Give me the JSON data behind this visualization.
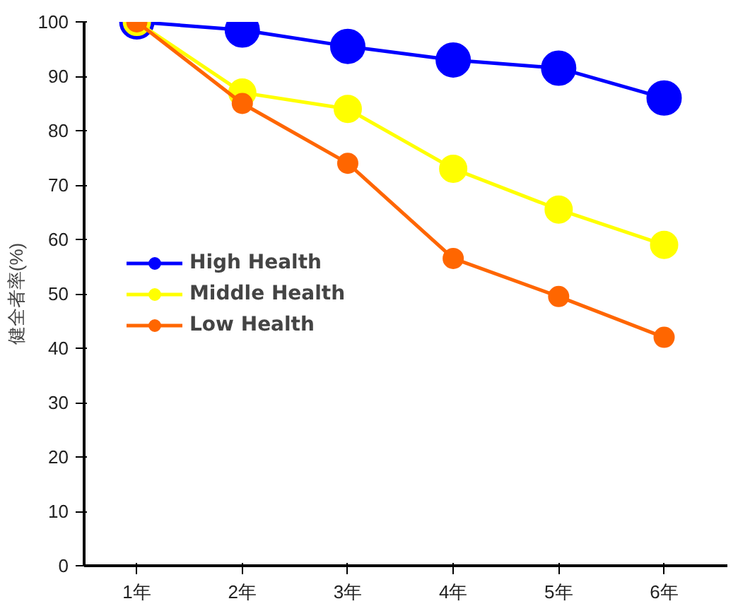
{
  "chart_data": {
    "type": "line",
    "ylabel": "健全者率(%)",
    "categories": [
      "1年",
      "2年",
      "3年",
      "4年",
      "5年",
      "6年"
    ],
    "series": [
      {
        "name": "High Health",
        "color": "#0000ff",
        "values": [
          100,
          98.5,
          95.5,
          93,
          91.5,
          86
        ]
      },
      {
        "name": "Middle Health",
        "color": "#ffff00",
        "values": [
          100,
          87,
          84,
          73,
          65.5,
          59
        ]
      },
      {
        "name": "Low Health",
        "color": "#ff6600",
        "values": [
          100,
          85,
          74,
          56.5,
          49.5,
          42
        ]
      }
    ],
    "ylim": [
      0,
      100
    ],
    "yticks": [
      0,
      10,
      20,
      30,
      40,
      50,
      60,
      70,
      80,
      90,
      100
    ],
    "grid": false,
    "legend": "center left",
    "marker": "circle",
    "line_style": "solid"
  }
}
